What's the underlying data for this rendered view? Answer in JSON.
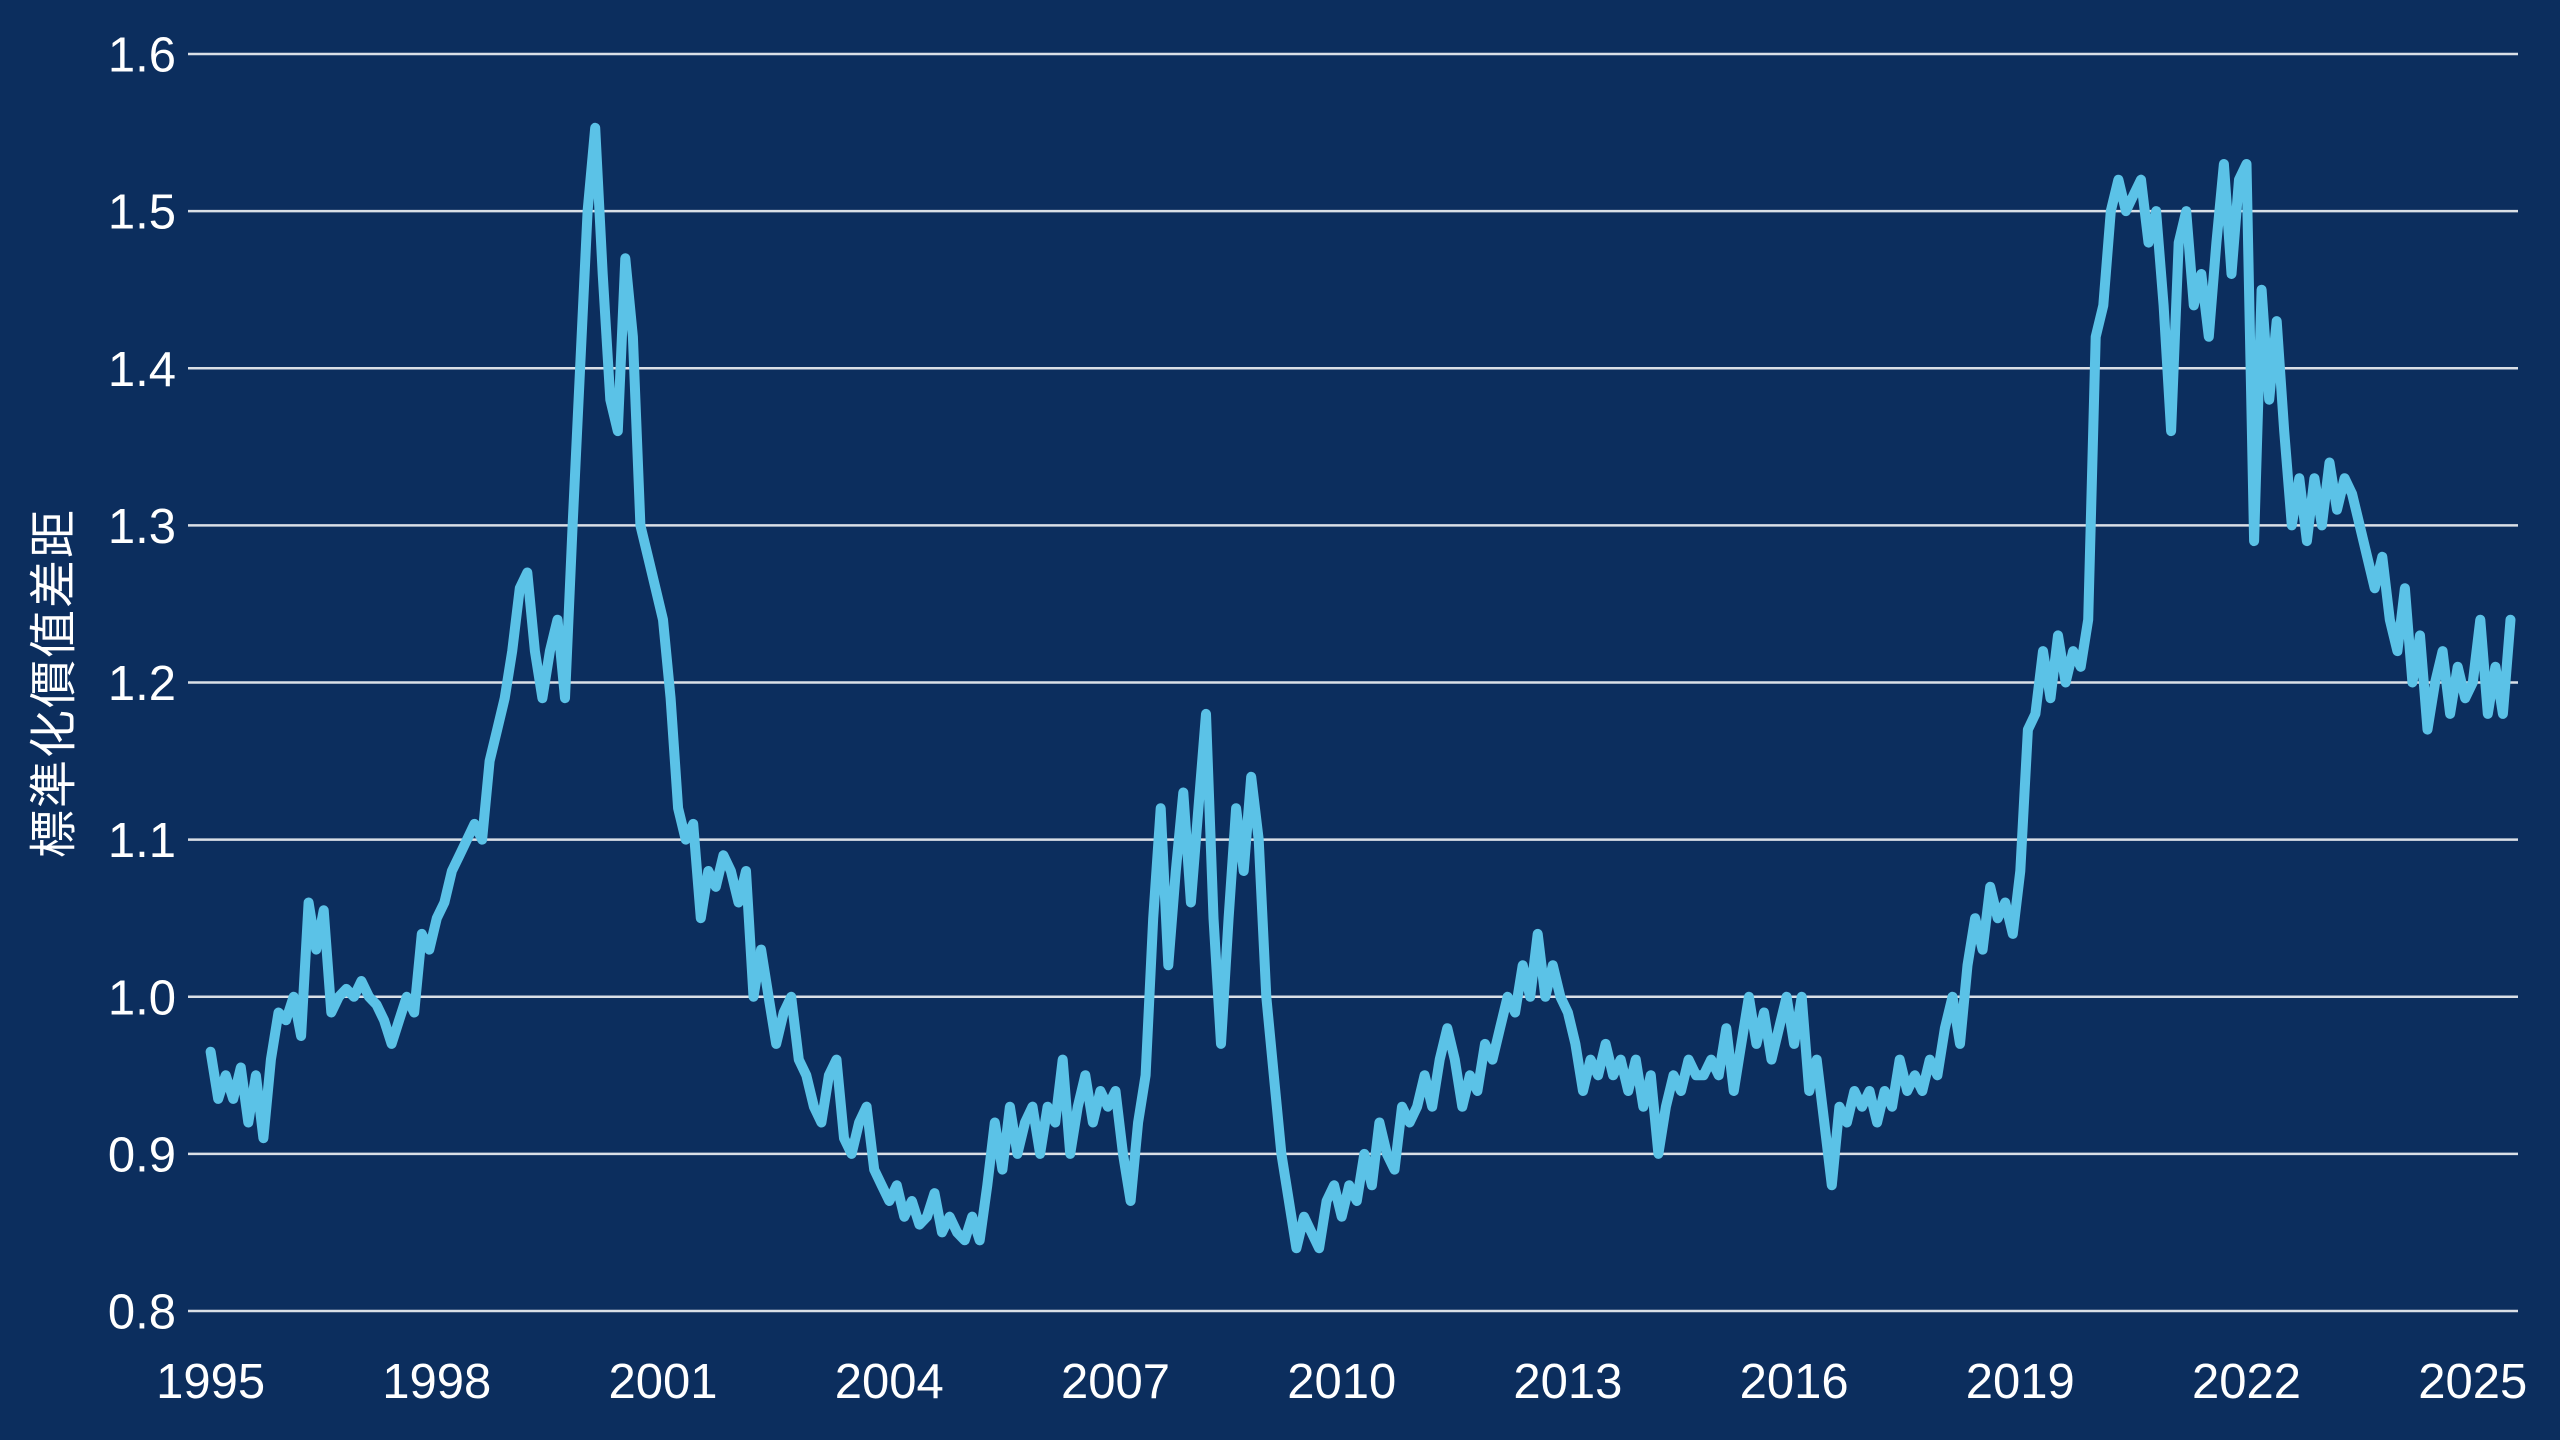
{
  "colors": {
    "background": "#0c2e5e",
    "line": "#5bc2e7",
    "grid": "#e6e9ee",
    "text": "#ffffff"
  },
  "chart_data": {
    "type": "line",
    "title": "",
    "xlabel": "",
    "ylabel": "標準化價值差距",
    "legend": "none",
    "grid": true,
    "ylim": [
      0.8,
      1.6
    ],
    "xlim": [
      1994.7,
      2025.6
    ],
    "x_ticks": [
      1995,
      1998,
      2001,
      2004,
      2007,
      2010,
      2013,
      2016,
      2019,
      2022,
      2025
    ],
    "x_tick_labels": [
      "1995",
      "1998",
      "2001",
      "2004",
      "2007",
      "2010",
      "2013",
      "2016",
      "2019",
      "2022",
      "2025"
    ],
    "y_ticks": [
      0.8,
      0.9,
      1.0,
      1.1,
      1.2,
      1.3,
      1.4,
      1.5,
      1.6
    ],
    "y_tick_labels": [
      "0.8",
      "0.9",
      "1.0",
      "1.1",
      "1.2",
      "1.3",
      "1.4",
      "1.5",
      "1.6"
    ],
    "x_start": 1995.0,
    "x_step": 0.1,
    "series": [
      {
        "name": "標準化價值差距",
        "values": [
          0.965,
          0.935,
          0.95,
          0.935,
          0.955,
          0.92,
          0.95,
          0.91,
          0.96,
          0.99,
          0.985,
          1.0,
          0.975,
          1.06,
          1.03,
          1.055,
          0.99,
          1.0,
          1.005,
          1.0,
          1.01,
          1.0,
          0.995,
          0.985,
          0.97,
          0.985,
          1.0,
          0.99,
          1.04,
          1.03,
          1.05,
          1.06,
          1.08,
          1.09,
          1.1,
          1.11,
          1.1,
          1.15,
          1.17,
          1.19,
          1.22,
          1.26,
          1.27,
          1.22,
          1.19,
          1.22,
          1.24,
          1.19,
          1.3,
          1.4,
          1.5,
          1.553,
          1.46,
          1.38,
          1.36,
          1.47,
          1.42,
          1.3,
          1.28,
          1.26,
          1.24,
          1.19,
          1.12,
          1.1,
          1.11,
          1.05,
          1.08,
          1.07,
          1.09,
          1.08,
          1.06,
          1.08,
          1.0,
          1.03,
          1.0,
          0.97,
          0.99,
          1.0,
          0.96,
          0.95,
          0.93,
          0.92,
          0.95,
          0.96,
          0.91,
          0.9,
          0.92,
          0.93,
          0.89,
          0.88,
          0.87,
          0.88,
          0.86,
          0.87,
          0.855,
          0.86,
          0.875,
          0.85,
          0.86,
          0.85,
          0.845,
          0.86,
          0.845,
          0.88,
          0.92,
          0.89,
          0.93,
          0.9,
          0.92,
          0.93,
          0.9,
          0.93,
          0.92,
          0.96,
          0.9,
          0.93,
          0.95,
          0.92,
          0.94,
          0.93,
          0.94,
          0.9,
          0.87,
          0.92,
          0.95,
          1.05,
          1.12,
          1.02,
          1.08,
          1.13,
          1.06,
          1.12,
          1.18,
          1.05,
          0.97,
          1.05,
          1.12,
          1.08,
          1.14,
          1.1,
          1.0,
          0.95,
          0.9,
          0.87,
          0.84,
          0.86,
          0.85,
          0.84,
          0.87,
          0.88,
          0.86,
          0.88,
          0.87,
          0.9,
          0.88,
          0.92,
          0.9,
          0.89,
          0.93,
          0.92,
          0.93,
          0.95,
          0.93,
          0.96,
          0.98,
          0.96,
          0.93,
          0.95,
          0.94,
          0.97,
          0.96,
          0.98,
          1.0,
          0.99,
          1.02,
          1.0,
          1.04,
          1.0,
          1.02,
          1.0,
          0.99,
          0.97,
          0.94,
          0.96,
          0.95,
          0.97,
          0.95,
          0.96,
          0.94,
          0.96,
          0.93,
          0.95,
          0.9,
          0.93,
          0.95,
          0.94,
          0.96,
          0.95,
          0.95,
          0.96,
          0.95,
          0.98,
          0.94,
          0.97,
          1.0,
          0.97,
          0.99,
          0.96,
          0.98,
          1.0,
          0.97,
          1.0,
          0.94,
          0.96,
          0.92,
          0.88,
          0.93,
          0.92,
          0.94,
          0.93,
          0.94,
          0.92,
          0.94,
          0.93,
          0.96,
          0.94,
          0.95,
          0.94,
          0.96,
          0.95,
          0.98,
          1.0,
          0.97,
          1.02,
          1.05,
          1.03,
          1.07,
          1.05,
          1.06,
          1.04,
          1.08,
          1.17,
          1.18,
          1.22,
          1.19,
          1.23,
          1.2,
          1.22,
          1.21,
          1.24,
          1.42,
          1.44,
          1.5,
          1.52,
          1.5,
          1.51,
          1.52,
          1.48,
          1.5,
          1.44,
          1.36,
          1.48,
          1.5,
          1.44,
          1.46,
          1.42,
          1.48,
          1.53,
          1.46,
          1.52,
          1.53,
          1.29,
          1.45,
          1.38,
          1.43,
          1.36,
          1.3,
          1.33,
          1.29,
          1.33,
          1.3,
          1.34,
          1.31,
          1.33,
          1.32,
          1.3,
          1.28,
          1.26,
          1.28,
          1.24,
          1.22,
          1.26,
          1.2,
          1.23,
          1.17,
          1.2,
          1.22,
          1.18,
          1.21,
          1.19,
          1.2,
          1.24,
          1.18,
          1.21,
          1.18,
          1.24
        ]
      }
    ]
  }
}
